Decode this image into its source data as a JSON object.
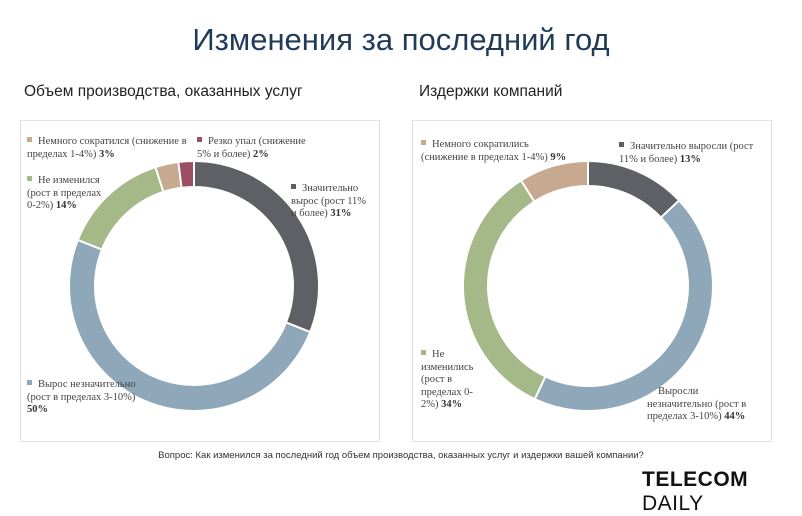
{
  "title": "Изменения за последний год",
  "footnote": "Вопрос: Как изменился за последний год объем производства, оказанных услуг и издержки вашей компании?",
  "logo": {
    "part1": "TELECOM",
    "part2": "DAILY"
  },
  "chart_data": [
    {
      "type": "pie",
      "title": "Объем производства, оказанных услуг",
      "slices": [
        {
          "text": "Значительно вырос (рост 11% и более)",
          "pct": "31%",
          "value": 31,
          "color": "#5f5f66"
        },
        {
          "text": "Вырос незначительно (рост в пределах 3-10%)",
          "pct": "50%",
          "value": 50,
          "color": "#8ea8b9"
        },
        {
          "text": "Не изменился (рост в пределах 0-2%)",
          "pct": "14%",
          "value": 14,
          "color": "#a4b888"
        },
        {
          "text": "Немного сократился (снижение в пределах 1-4%)",
          "pct": "3%",
          "value": 3,
          "color": "#c6a98f"
        },
        {
          "text": "Резко упал (снижение 5% и более)",
          "pct": "2%",
          "value": 2,
          "color": "#9b4e66"
        }
      ]
    },
    {
      "type": "pie",
      "title": "Издержки компаний",
      "slices": [
        {
          "text": "Значительно выросли (рост 11% и более)",
          "pct": "13%",
          "value": 13,
          "color": "#5f5f66"
        },
        {
          "text": "Выросли незначительно (рост в пределах 3-10%)",
          "pct": "44%",
          "value": 44,
          "color": "#8ea8b9"
        },
        {
          "text": "Не изменились (рост в пределах 0-2%)",
          "pct": "34%",
          "value": 34,
          "color": "#a4b888"
        },
        {
          "text": "Немного сократились (снижение в пределах 1-4%)",
          "pct": "9%",
          "value": 9,
          "color": "#c6a98f"
        }
      ]
    }
  ]
}
